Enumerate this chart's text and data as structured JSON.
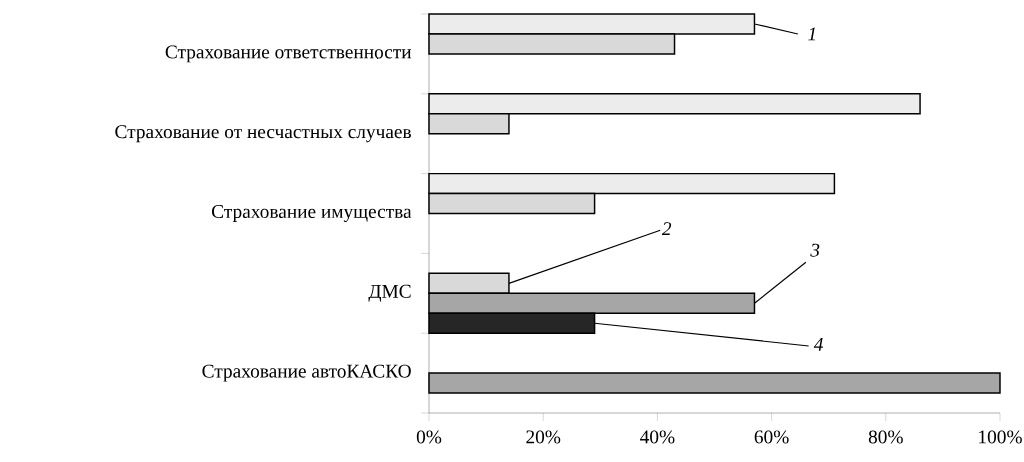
{
  "chart_data": {
    "type": "bar",
    "orientation": "horizontal",
    "categories": [
      "Страхование ответственности",
      "Страхование от несчастных случаев",
      "Страхование имущества",
      "ДМС",
      "Страхование автоКАСКО"
    ],
    "series": [
      {
        "name": "1",
        "color": "#ececec",
        "values": [
          57,
          86,
          71,
          null,
          null
        ]
      },
      {
        "name": "2",
        "color": "#d9d9d9",
        "values": [
          43,
          14,
          29,
          14,
          null
        ]
      },
      {
        "name": "3",
        "color": "#a6a6a6",
        "values": [
          null,
          null,
          null,
          57,
          100
        ]
      },
      {
        "name": "4",
        "color": "#262626",
        "values": [
          null,
          null,
          null,
          29,
          null
        ]
      }
    ],
    "xlim": [
      0,
      100
    ],
    "xticks": [
      {
        "value": 0,
        "label": "0%"
      },
      {
        "value": 20,
        "label": "20%"
      },
      {
        "value": 40,
        "label": "40%"
      },
      {
        "value": 60,
        "label": "60%"
      },
      {
        "value": 80,
        "label": "80%"
      },
      {
        "value": 100,
        "label": "100%"
      }
    ],
    "grid": false,
    "legend": "right"
  }
}
